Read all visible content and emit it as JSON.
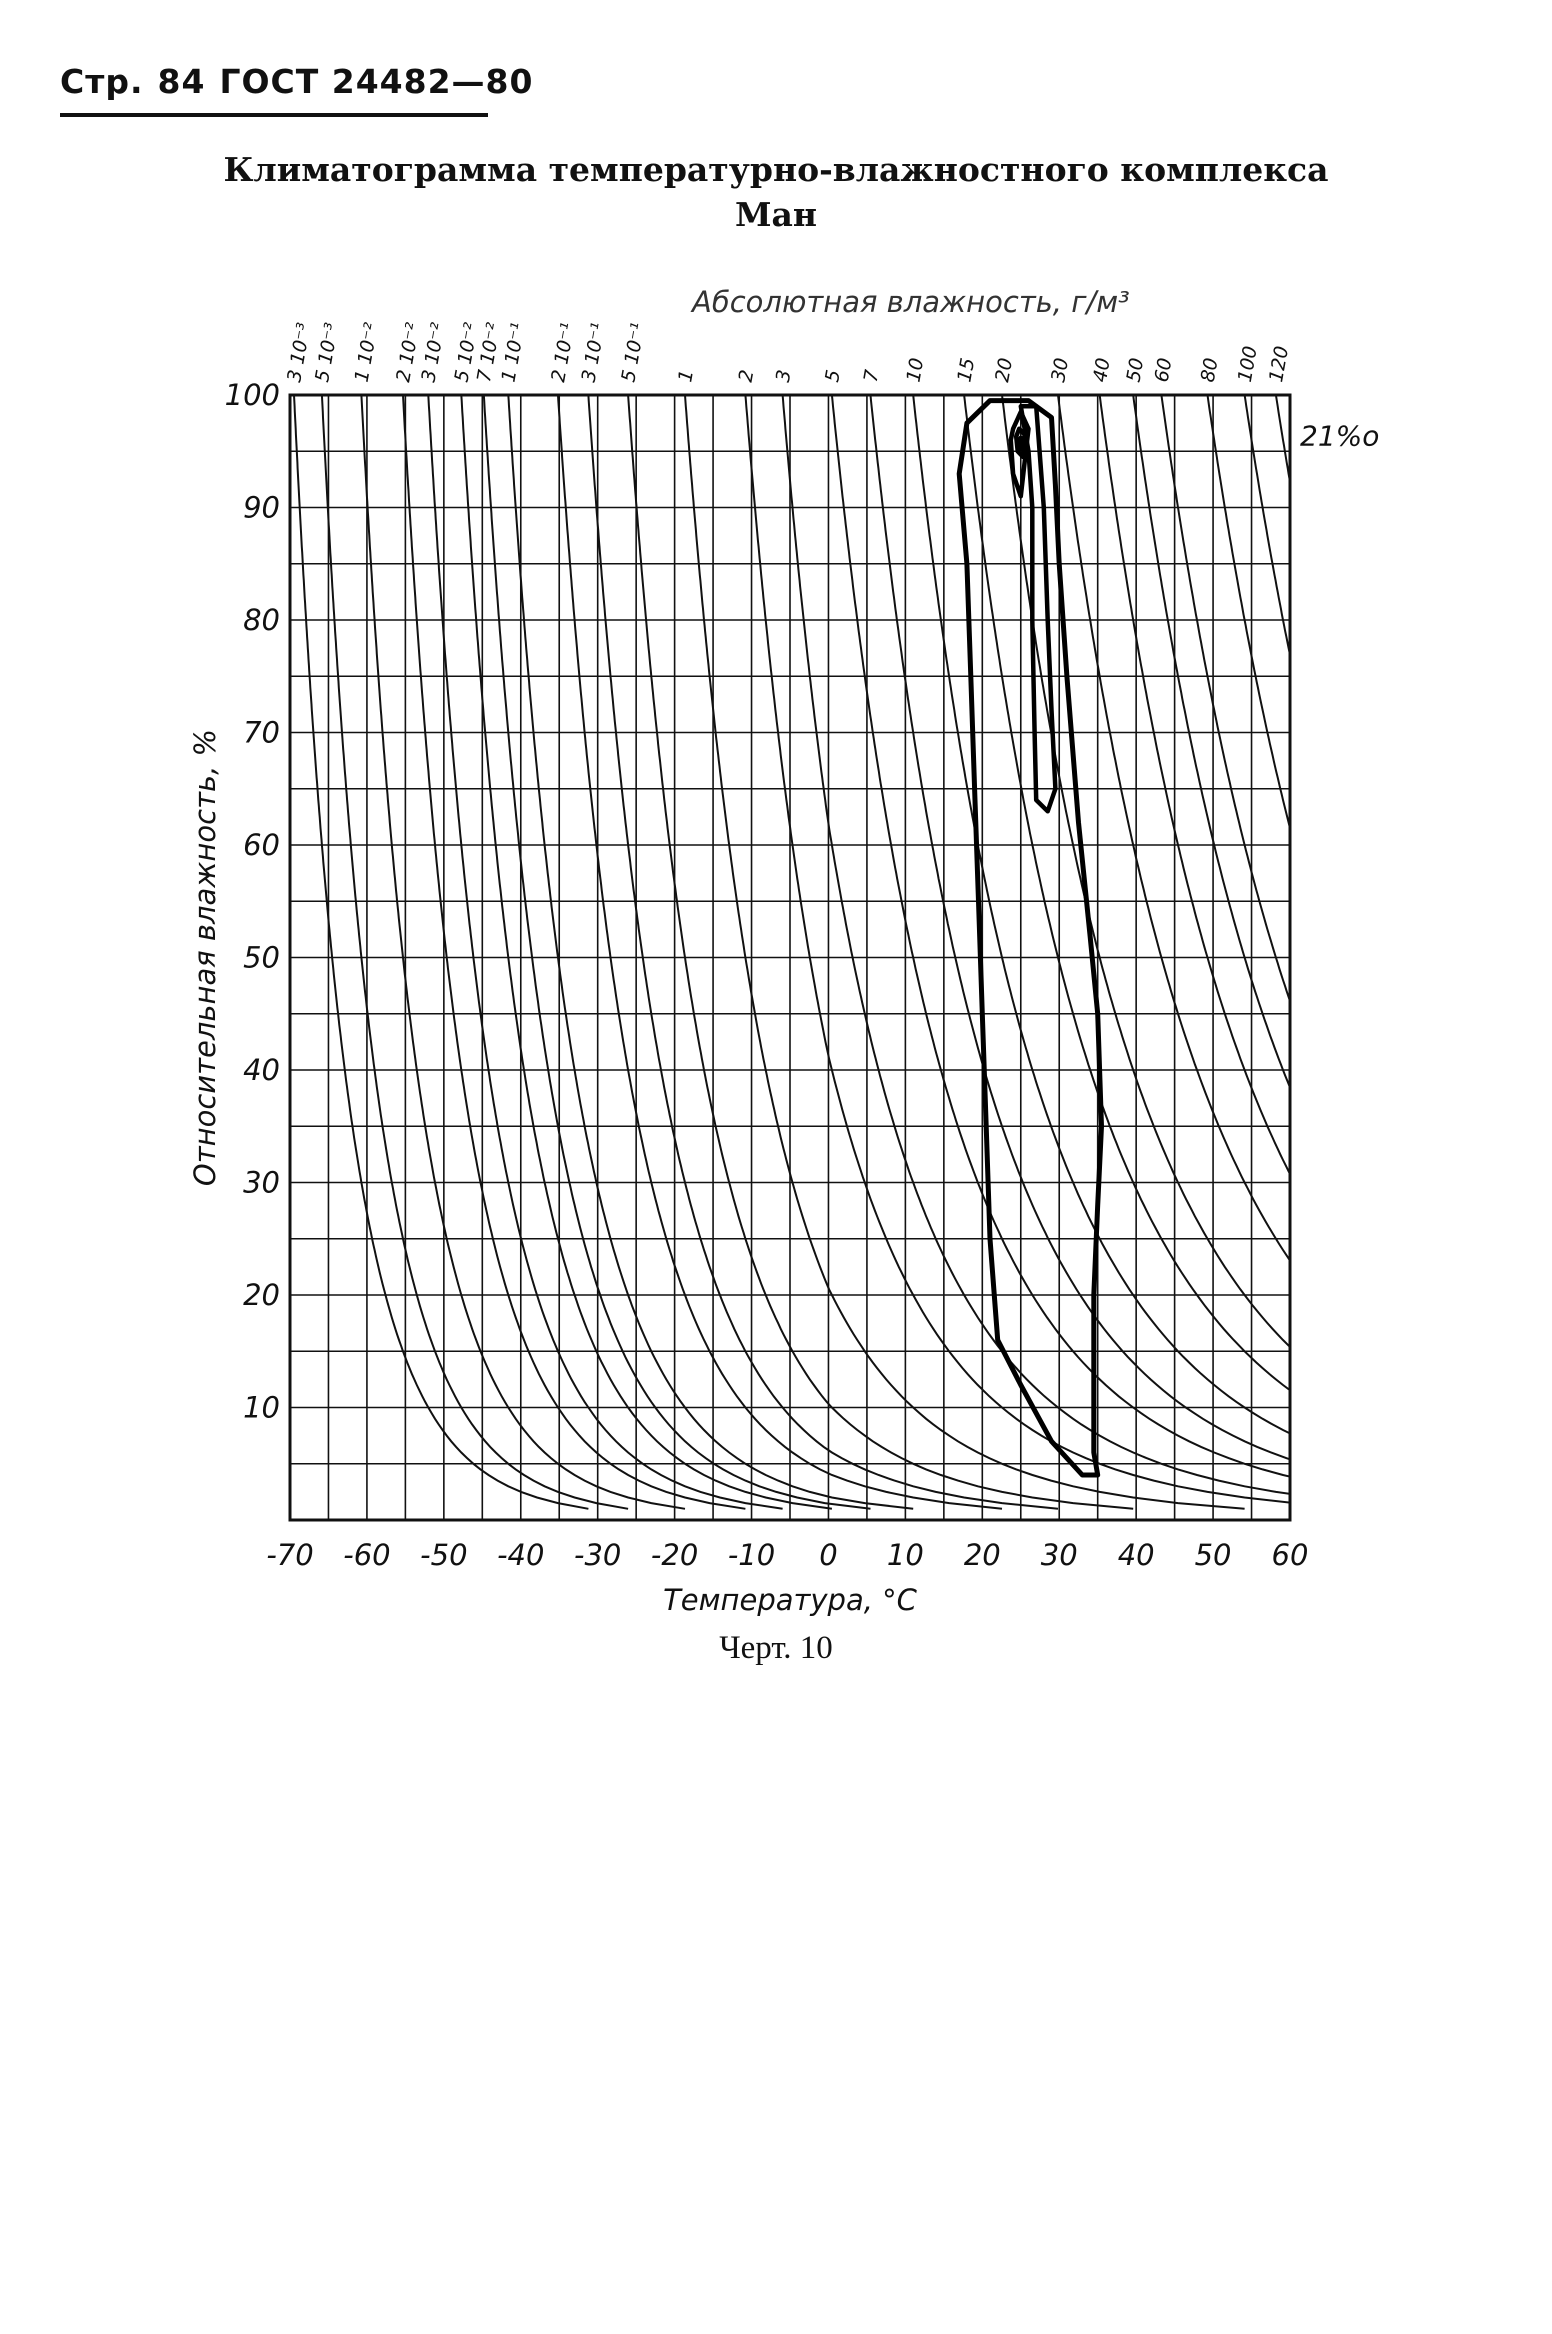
{
  "header": {
    "page_prefix": "Стр.",
    "page_number": "84",
    "standard": "ГОСТ 24482—80"
  },
  "title": {
    "line1": "Климатограмма температурно-влажностного комплекса",
    "line2": "Ман"
  },
  "caption": "Черт. 10",
  "chart_data": {
    "type": "line",
    "title": "Климатограмма температурно-влажностного комплекса Ман",
    "xlabel": "Температура, °C",
    "ylabel": "Относительная влажность, %",
    "top_axis_label": "Абсолютная влажность, г/м³",
    "xlim": [
      -70,
      60
    ],
    "ylim": [
      0,
      100
    ],
    "x_ticks": [
      -70,
      -60,
      -50,
      -40,
      -30,
      -20,
      -10,
      0,
      10,
      20,
      30,
      40,
      50,
      60
    ],
    "y_ticks": [
      10,
      20,
      30,
      40,
      50,
      60,
      70,
      80,
      90,
      100
    ],
    "x_tick_labels": [
      "-70",
      "-60",
      "-50",
      "-40",
      "-30",
      "-20",
      "-10",
      "0",
      "10",
      "20",
      "30",
      "40",
      "50",
      "60"
    ],
    "y_tick_labels": [
      "10",
      "20",
      "30",
      "40",
      "50",
      "60",
      "70",
      "80",
      "90",
      "100"
    ],
    "abs_humidity_labels": [
      "3 10⁻³",
      "5 10⁻³",
      "1 10⁻²",
      "2 10⁻²",
      "3 10⁻²",
      "5 10⁻²",
      "7 10⁻²",
      "1 10⁻¹",
      "2 10⁻¹",
      "3 10⁻¹",
      "5 10⁻¹",
      "1",
      "2",
      "3",
      "5",
      "7",
      "10",
      "15",
      "20",
      "30",
      "40",
      "50",
      "60",
      "80",
      "100",
      "120"
    ],
    "abs_humidity_values": [
      0.003,
      0.005,
      0.01,
      0.02,
      0.03,
      0.05,
      0.07,
      0.1,
      0.2,
      0.3,
      0.5,
      1,
      2,
      3,
      5,
      7,
      10,
      15,
      20,
      30,
      40,
      50,
      60,
      80,
      100,
      120
    ],
    "annotation": "21%o",
    "grid": true,
    "series": [
      {
        "values": [
          [
            35,
            4
          ],
          [
            33,
            4
          ],
          [
            29,
            7
          ],
          [
            25,
            12
          ],
          [
            22,
            16
          ],
          [
            21,
            25
          ],
          [
            20.5,
            35
          ],
          [
            20,
            45
          ],
          [
            19.5,
            55
          ],
          [
            19,
            65
          ],
          [
            18.5,
            75
          ],
          [
            18,
            85
          ],
          [
            17,
            93
          ],
          [
            18,
            97.5
          ],
          [
            21,
            99.5
          ],
          [
            26,
            99.5
          ],
          [
            29,
            98
          ],
          [
            29.5,
            92
          ],
          [
            30,
            85
          ],
          [
            31,
            75
          ],
          [
            32.5,
            62
          ],
          [
            34,
            52
          ],
          [
            35,
            45
          ],
          [
            35.5,
            35
          ],
          [
            35,
            28
          ],
          [
            34.5,
            20
          ],
          [
            34.5,
            12
          ],
          [
            34.5,
            6
          ],
          [
            35,
            4
          ]
        ]
      },
      {
        "values": [
          [
            27,
            64
          ],
          [
            28.5,
            63
          ],
          [
            29.5,
            65
          ],
          [
            29,
            72
          ],
          [
            28.5,
            80
          ],
          [
            28,
            90
          ],
          [
            27,
            99
          ],
          [
            25,
            99
          ],
          [
            26,
            95
          ],
          [
            26.5,
            90
          ],
          [
            26.5,
            80
          ],
          [
            26.8,
            70
          ],
          [
            27,
            64
          ]
        ]
      },
      {
        "values": [
          [
            24,
            97
          ],
          [
            25,
            98.5
          ],
          [
            26,
            97
          ],
          [
            25.5,
            94
          ],
          [
            25,
            91
          ],
          [
            24,
            93
          ],
          [
            23.7,
            96
          ],
          [
            24,
            97
          ]
        ]
      },
      {
        "values": [
          [
            24.8,
            97
          ],
          [
            25.5,
            96.5
          ],
          [
            25.3,
            94.5
          ],
          [
            24.6,
            95
          ],
          [
            24.4,
            96.3
          ],
          [
            24.8,
            97
          ]
        ]
      },
      {
        "values": [
          [
            25,
            96.2
          ],
          [
            25.3,
            95.6
          ],
          [
            24.9,
            95.2
          ],
          [
            24.7,
            95.8
          ],
          [
            25,
            96.2
          ]
        ]
      }
    ]
  }
}
